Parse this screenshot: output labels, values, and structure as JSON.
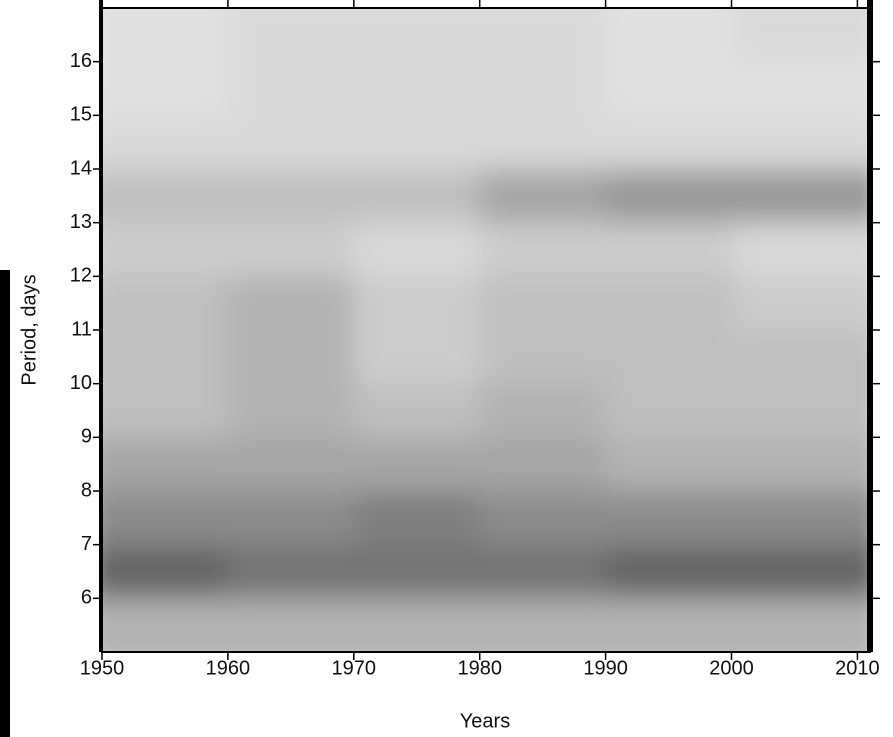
{
  "chart_data": {
    "type": "heatmap",
    "x_label": "Years",
    "y_label": "Period, days",
    "x": [
      1955,
      1965,
      1975,
      1985,
      1995,
      2005.5
    ],
    "y": [
      5.5,
      6.5,
      7.5,
      8.5,
      9.5,
      10.5,
      11.5,
      12.5,
      13.5,
      14.5,
      15.5,
      16.5
    ],
    "z": [
      [
        0.3,
        0.3,
        0.3,
        0.3,
        0.3,
        0.3
      ],
      [
        0.6,
        0.55,
        0.55,
        0.55,
        0.6,
        0.6
      ],
      [
        0.45,
        0.45,
        0.5,
        0.45,
        0.45,
        0.45
      ],
      [
        0.35,
        0.35,
        0.35,
        0.35,
        0.3,
        0.3
      ],
      [
        0.25,
        0.3,
        0.25,
        0.3,
        0.25,
        0.25
      ],
      [
        0.25,
        0.3,
        0.2,
        0.25,
        0.25,
        0.25
      ],
      [
        0.25,
        0.3,
        0.2,
        0.25,
        0.25,
        0.2
      ],
      [
        0.2,
        0.2,
        0.15,
        0.2,
        0.2,
        0.15
      ],
      [
        0.25,
        0.25,
        0.25,
        0.35,
        0.4,
        0.4
      ],
      [
        0.15,
        0.15,
        0.15,
        0.15,
        0.15,
        0.15
      ],
      [
        0.12,
        0.15,
        0.15,
        0.15,
        0.12,
        0.12
      ],
      [
        0.12,
        0.15,
        0.15,
        0.15,
        0.12,
        0.15
      ]
    ],
    "xlim": [
      1950,
      2011
    ],
    "ylim": [
      5,
      17
    ],
    "xticks": [
      1950,
      1960,
      1970,
      1980,
      1990,
      2000,
      2010
    ],
    "yticks": [
      6,
      7,
      8,
      9,
      10,
      11,
      12,
      13,
      14,
      15,
      16
    ],
    "color": "#000000"
  }
}
